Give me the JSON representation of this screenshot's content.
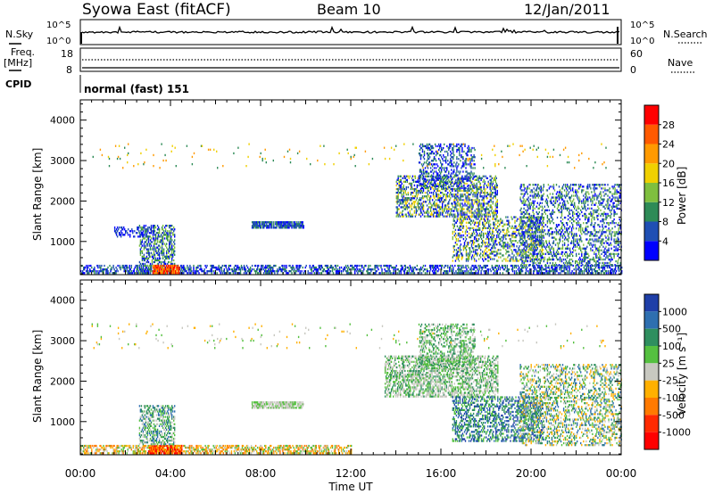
{
  "header": {
    "station": "Syowa East (fitACF)",
    "beam": "Beam 10",
    "date": "12/Jan/2011"
  },
  "strip_panels": {
    "nsky_label": "N.Sky",
    "nsearch_label": "N.Search",
    "nsky_ticks": [
      "10^5",
      "10^0"
    ],
    "nsearch_ticks": [
      "10^5",
      "10^0"
    ],
    "freq_label_1": "Freq.",
    "freq_label_2": "[MHz]",
    "freq_ticks": [
      "18",
      "8"
    ],
    "nave_label": "Nave",
    "nave_ticks": [
      "60",
      "0"
    ],
    "cpid_label": "CPID",
    "cpid_value": "normal (fast) 151"
  },
  "chart_data": [
    {
      "type": "heatmap",
      "name": "power-panel",
      "ylabel": "Slant Range [km]",
      "xlabel": "",
      "x_ticks": [
        "00:00",
        "04:00",
        "08:00",
        "12:00",
        "16:00",
        "20:00",
        "00:00"
      ],
      "y_ticks": [
        "1000",
        "2000",
        "3000",
        "4000"
      ],
      "xlim_hours": [
        0,
        24
      ],
      "ylim_km": [
        180,
        4500
      ],
      "colorbar": {
        "label": "Power [dB]",
        "ticks": [
          "4",
          "8",
          "12",
          "16",
          "20",
          "24",
          "28"
        ],
        "colors": [
          "#0000ff",
          "#1f4fb4",
          "#2e8b57",
          "#7fbf3f",
          "#f0d000",
          "#ff9a00",
          "#ff5a00",
          "#ff0000"
        ]
      },
      "regions": [
        {
          "t0": 0.0,
          "t1": 24.0,
          "r0": 200,
          "r1": 400,
          "density": 0.45,
          "colors": [
            1,
            0,
            2
          ]
        },
        {
          "t0": 1.5,
          "t1": 3.0,
          "r0": 1100,
          "r1": 1350,
          "density": 0.35,
          "colors": [
            0,
            1
          ]
        },
        {
          "t0": 2.6,
          "t1": 4.2,
          "r0": 200,
          "r1": 1400,
          "density": 0.45,
          "colors": [
            1,
            2,
            0,
            3
          ]
        },
        {
          "t0": 3.2,
          "t1": 4.4,
          "r0": 200,
          "r1": 420,
          "density": 0.85,
          "colors": [
            6,
            7,
            5
          ]
        },
        {
          "t0": 7.6,
          "t1": 9.9,
          "r0": 1320,
          "r1": 1480,
          "density": 0.75,
          "colors": [
            1,
            2,
            0
          ]
        },
        {
          "t0": 14.0,
          "t1": 18.5,
          "r0": 1600,
          "r1": 2600,
          "density": 0.45,
          "colors": [
            0,
            1,
            2,
            3,
            4
          ]
        },
        {
          "t0": 15.0,
          "t1": 17.5,
          "r0": 2300,
          "r1": 3400,
          "density": 0.3,
          "colors": [
            0,
            1,
            2
          ]
        },
        {
          "t0": 16.5,
          "t1": 20.5,
          "r0": 500,
          "r1": 1600,
          "density": 0.35,
          "colors": [
            1,
            2,
            3,
            0,
            4
          ]
        },
        {
          "t0": 19.5,
          "t1": 24.0,
          "r0": 400,
          "r1": 2400,
          "density": 0.3,
          "colors": [
            0,
            1,
            2,
            3
          ]
        },
        {
          "t0": 0.5,
          "t1": 23.5,
          "r0": 2800,
          "r1": 3400,
          "density": 0.02,
          "colors": [
            4,
            5,
            2
          ]
        }
      ]
    },
    {
      "type": "heatmap",
      "name": "velocity-panel",
      "ylabel": "Slant Range [km]",
      "xlabel": "Time UT",
      "x_ticks": [
        "00:00",
        "04:00",
        "08:00",
        "12:00",
        "16:00",
        "20:00",
        "00:00"
      ],
      "y_ticks": [
        "1000",
        "2000",
        "3000",
        "4000"
      ],
      "xlim_hours": [
        0,
        24
      ],
      "ylim_km": [
        180,
        4500
      ],
      "colorbar": {
        "label": "Velocity [m s⁻¹]",
        "ticks": [
          "1000",
          "500",
          "100",
          "25",
          "-25",
          "-100",
          "-500",
          "-1000"
        ],
        "colors": [
          "#1f3fa8",
          "#2e6fb0",
          "#2f8f5f",
          "#55c040",
          "#c8c8c0",
          "#ffb000",
          "#ff7a00",
          "#ff2a00",
          "#ff0000"
        ]
      },
      "regions": [
        {
          "t0": 0.0,
          "t1": 12.0,
          "r0": 200,
          "r1": 400,
          "density": 0.5,
          "colors": [
            5,
            6,
            3,
            4
          ]
        },
        {
          "t0": 3.0,
          "t1": 4.5,
          "r0": 200,
          "r1": 420,
          "density": 0.85,
          "colors": [
            6,
            7,
            8,
            5
          ]
        },
        {
          "t0": 2.6,
          "t1": 4.2,
          "r0": 420,
          "r1": 1400,
          "density": 0.45,
          "colors": [
            2,
            1,
            3,
            4
          ]
        },
        {
          "t0": 7.6,
          "t1": 9.9,
          "r0": 1320,
          "r1": 1480,
          "density": 0.75,
          "colors": [
            4,
            4,
            3
          ]
        },
        {
          "t0": 13.5,
          "t1": 18.5,
          "r0": 1600,
          "r1": 2600,
          "density": 0.5,
          "colors": [
            4,
            3,
            2,
            4
          ]
        },
        {
          "t0": 15.0,
          "t1": 17.5,
          "r0": 2300,
          "r1": 3400,
          "density": 0.35,
          "colors": [
            4,
            3,
            2
          ]
        },
        {
          "t0": 16.5,
          "t1": 20.5,
          "r0": 500,
          "r1": 1600,
          "density": 0.4,
          "colors": [
            1,
            2,
            3,
            0
          ]
        },
        {
          "t0": 19.5,
          "t1": 24.0,
          "r0": 400,
          "r1": 2400,
          "density": 0.3,
          "colors": [
            2,
            3,
            4,
            1,
            5
          ]
        },
        {
          "t0": 0.5,
          "t1": 23.5,
          "r0": 2800,
          "r1": 3400,
          "density": 0.02,
          "colors": [
            4,
            5,
            3
          ]
        }
      ]
    }
  ]
}
